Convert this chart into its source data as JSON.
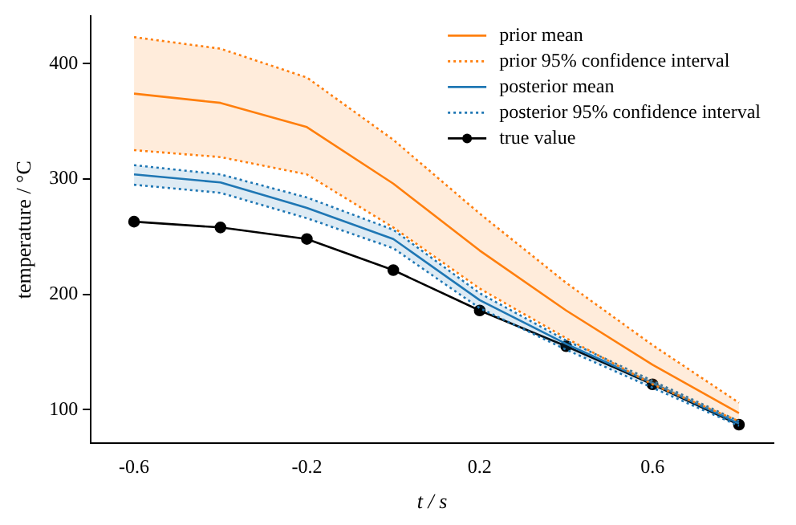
{
  "chart_data": {
    "type": "line",
    "xlabel": "t / s",
    "ylabel": "temperature / °C",
    "x": [
      -0.6,
      -0.4,
      -0.2,
      0,
      0.2,
      0.4,
      0.6,
      0.8
    ],
    "xlim": [
      -0.7,
      0.88
    ],
    "xticks": [
      -0.6,
      -0.2,
      0.2,
      0.6
    ],
    "ylim": [
      71,
      441
    ],
    "yticks": [
      100,
      200,
      300,
      400
    ],
    "grid": false,
    "legend": "top right",
    "marker": "none",
    "line_style": "solid",
    "series": [
      {
        "name": "prior mean",
        "color": "#ff7f0e",
        "values": [
          374,
          366,
          345,
          296,
          238,
          186,
          139,
          97
        ],
        "lower": [
          325,
          319,
          304,
          258,
          205,
          162,
          122,
          90
        ],
        "upper": [
          423,
          413,
          388,
          334,
          270,
          210,
          156,
          106
        ]
      },
      {
        "name": "prior 95% confidence interval",
        "color": "#ff7f0e",
        "line_style": "dotted",
        "values": [
          423,
          413,
          388,
          334,
          270,
          210,
          156,
          106
        ]
      },
      {
        "color": "#ff7f0e",
        "line_style": "dotted",
        "values": [
          325,
          319,
          304,
          258,
          205,
          162,
          122,
          90
        ]
      },
      {
        "name": "posterior mean",
        "color": "#1f77b4",
        "values": [
          304,
          297,
          275,
          248,
          195,
          157,
          123,
          88
        ],
        "lower": [
          295,
          288,
          266,
          240,
          188,
          152,
          119,
          86
        ],
        "upper": [
          312,
          304,
          284,
          256,
          201,
          160,
          125,
          90
        ]
      },
      {
        "name": "posterior 95% confidence interval",
        "color": "#1f77b4",
        "line_style": "dotted",
        "values": [
          312,
          304,
          284,
          256,
          201,
          160,
          125,
          90
        ]
      },
      {
        "color": "#1f77b4",
        "line_style": "dotted",
        "values": [
          295,
          288,
          266,
          240,
          188,
          152,
          119,
          86
        ]
      },
      {
        "name": "true value",
        "color": "#000000",
        "marker": "circle",
        "values": [
          263,
          258,
          248,
          221,
          186,
          155,
          122,
          87
        ]
      }
    ]
  }
}
